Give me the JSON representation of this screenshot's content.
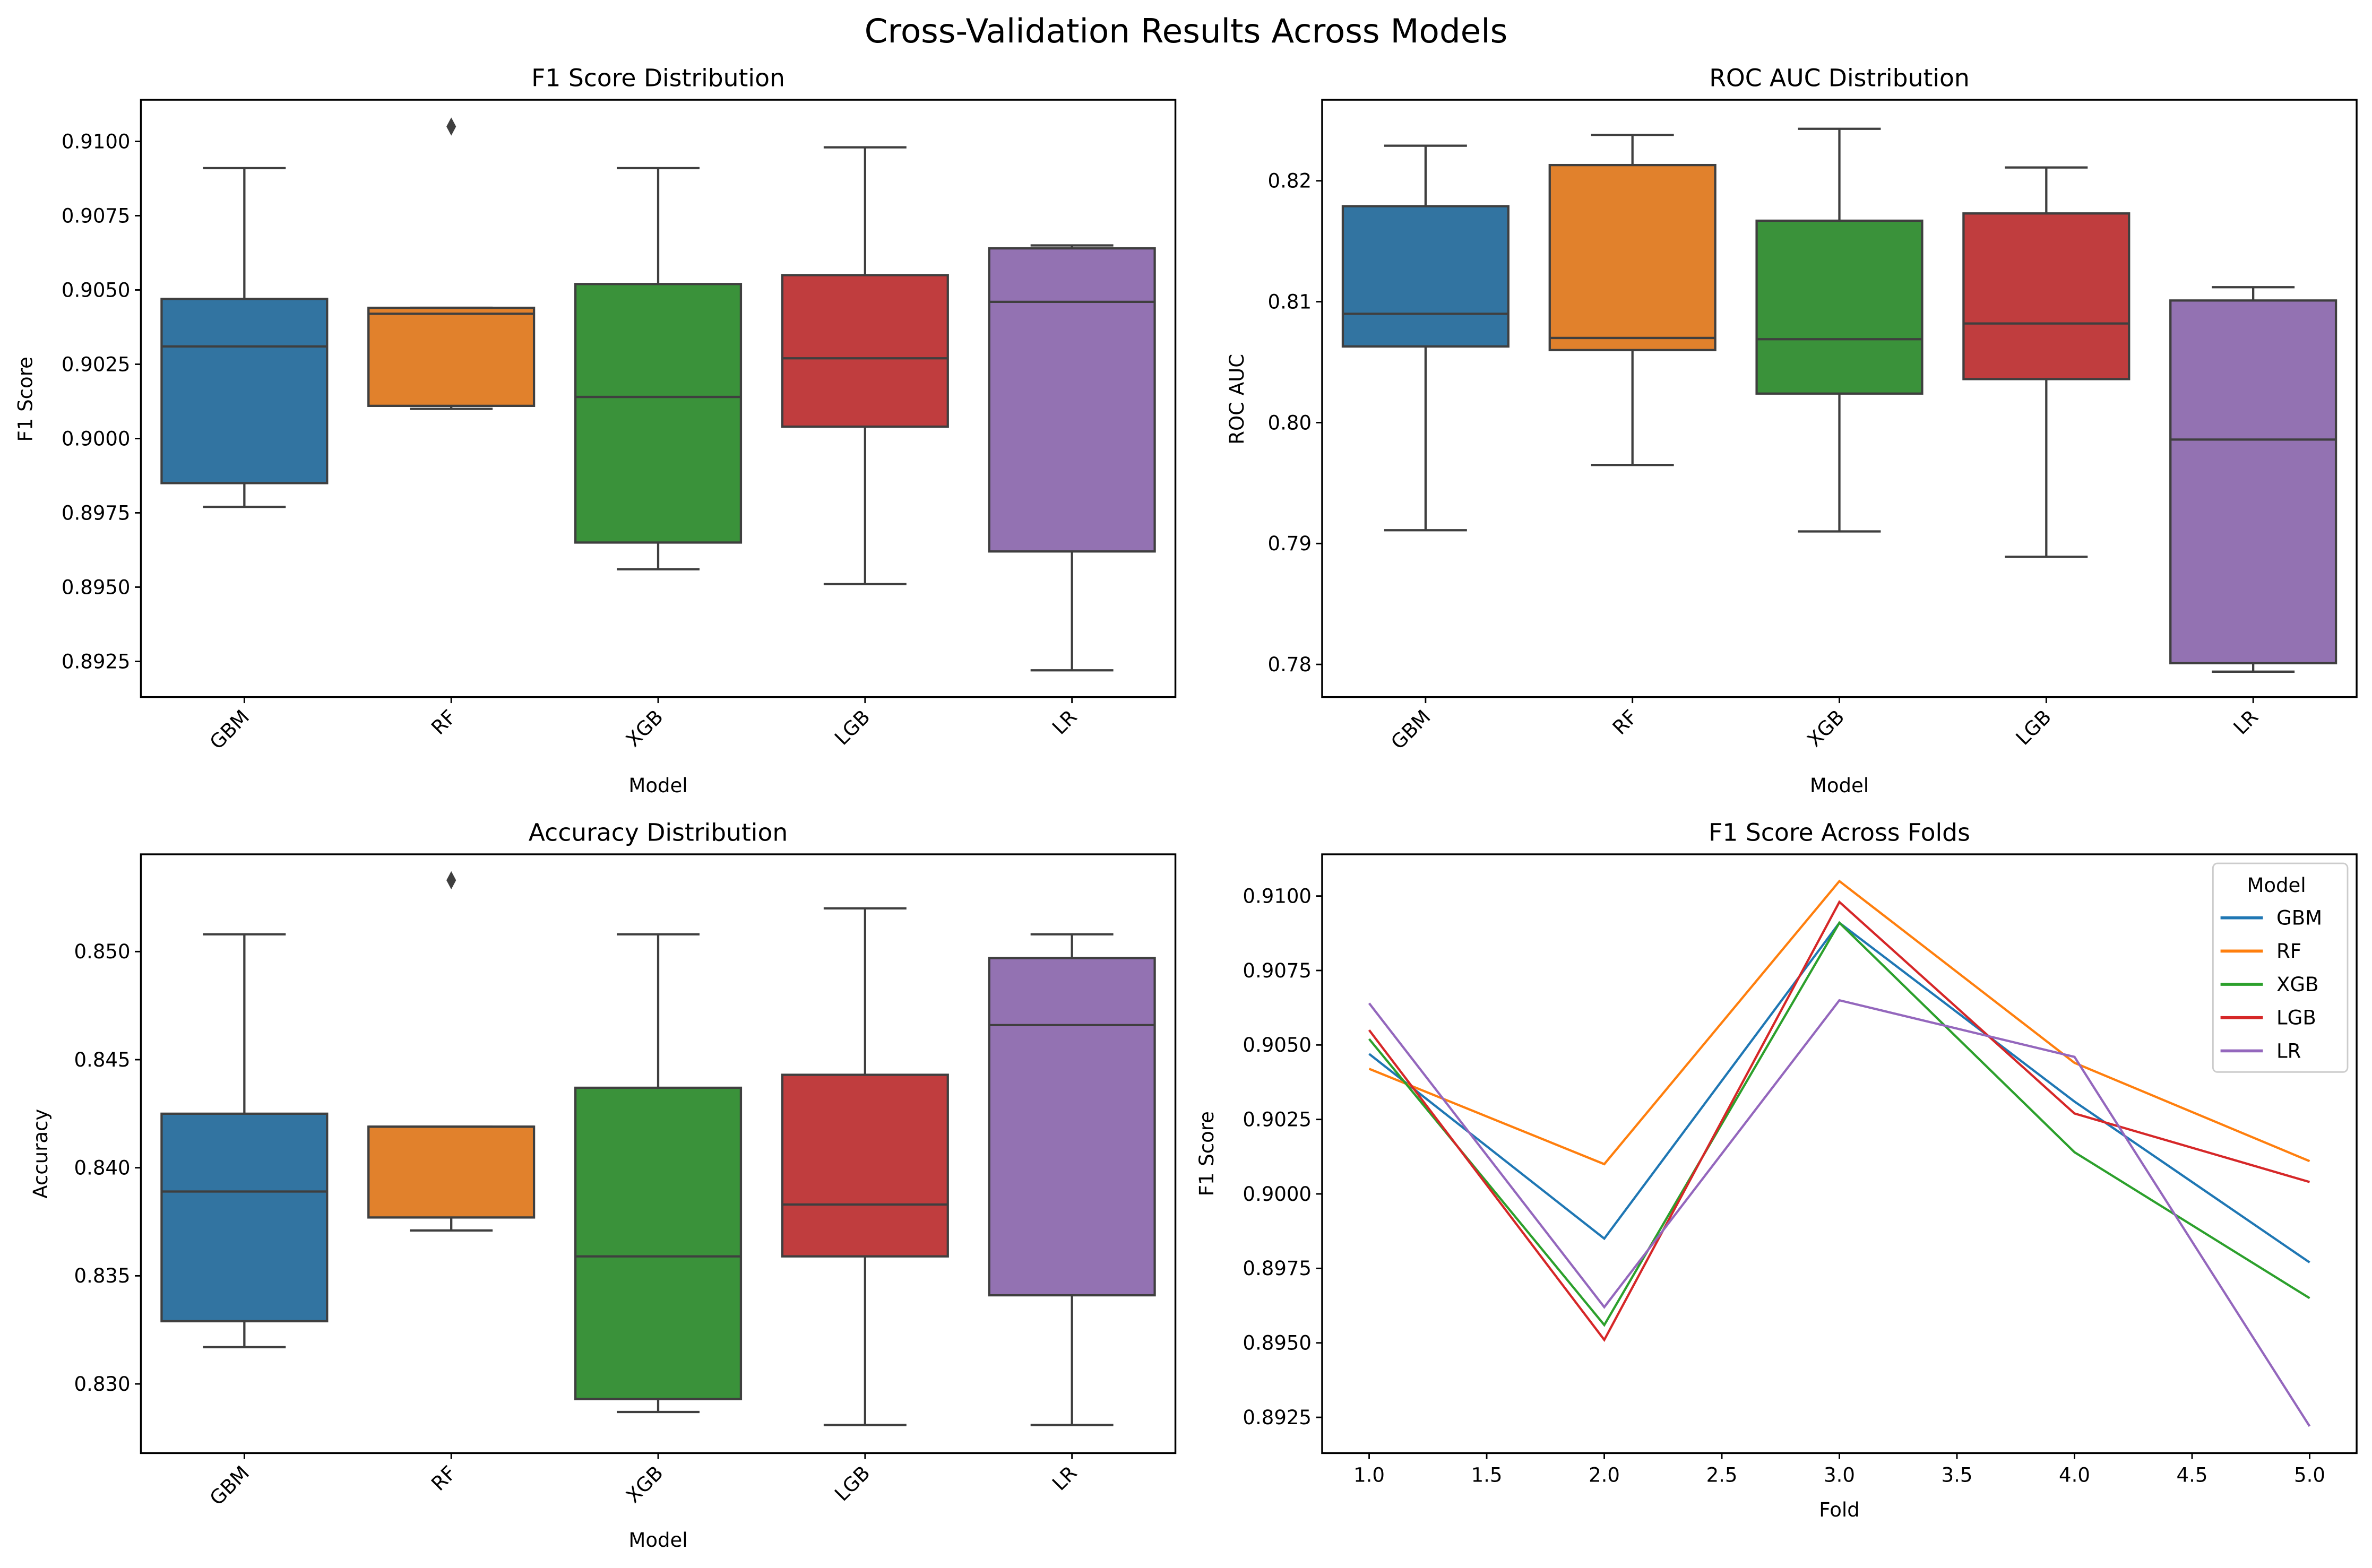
{
  "figure": {
    "title": "Cross-Validation Results Across Models"
  },
  "chart_data": [
    {
      "type": "box",
      "title": "F1 Score Distribution",
      "xlabel": "Model",
      "ylabel": "F1 Score",
      "categories": [
        "GBM",
        "RF",
        "XGB",
        "LGB",
        "LR"
      ],
      "colors": [
        "#3274a1",
        "#e1812c",
        "#3a923a",
        "#c03d3e",
        "#9372b2"
      ],
      "yticks": [
        "0.8925",
        "0.8950",
        "0.8975",
        "0.9000",
        "0.9025",
        "0.9050",
        "0.9075",
        "0.9100"
      ],
      "ytick_values": [
        0.8925,
        0.895,
        0.8975,
        0.9,
        0.9025,
        0.905,
        0.9075,
        0.91
      ],
      "ylim": [
        0.8913,
        0.9114
      ],
      "boxes": [
        {
          "whislo": 0.8977,
          "q1": 0.8985,
          "med": 0.9031,
          "q3": 0.9047,
          "whishi": 0.9091,
          "fliers": []
        },
        {
          "whislo": 0.901,
          "q1": 0.9011,
          "med": 0.9042,
          "q3": 0.9044,
          "whishi": 0.9044,
          "fliers": [
            0.9105
          ]
        },
        {
          "whislo": 0.8956,
          "q1": 0.8965,
          "med": 0.9014,
          "q3": 0.9052,
          "whishi": 0.9091,
          "fliers": []
        },
        {
          "whislo": 0.8951,
          "q1": 0.9004,
          "med": 0.9027,
          "q3": 0.9055,
          "whishi": 0.9098,
          "fliers": []
        },
        {
          "whislo": 0.8922,
          "q1": 0.8962,
          "med": 0.9046,
          "q3": 0.9064,
          "whishi": 0.9065,
          "fliers": []
        }
      ]
    },
    {
      "type": "box",
      "title": "ROC AUC Distribution",
      "xlabel": "Model",
      "ylabel": "ROC AUC",
      "categories": [
        "GBM",
        "RF",
        "XGB",
        "LGB",
        "LR"
      ],
      "colors": [
        "#3274a1",
        "#e1812c",
        "#3a923a",
        "#c03d3e",
        "#9372b2"
      ],
      "yticks": [
        "0.78",
        "0.79",
        "0.80",
        "0.81",
        "0.82"
      ],
      "ytick_values": [
        0.78,
        0.79,
        0.8,
        0.81,
        0.82
      ],
      "ylim": [
        0.7773,
        0.8267
      ],
      "boxes": [
        {
          "whislo": 0.7911,
          "q1": 0.8063,
          "med": 0.809,
          "q3": 0.8179,
          "whishi": 0.8229,
          "fliers": []
        },
        {
          "whislo": 0.7965,
          "q1": 0.806,
          "med": 0.807,
          "q3": 0.8213,
          "whishi": 0.8238,
          "fliers": []
        },
        {
          "whislo": 0.791,
          "q1": 0.8024,
          "med": 0.8069,
          "q3": 0.8167,
          "whishi": 0.8243,
          "fliers": []
        },
        {
          "whislo": 0.7889,
          "q1": 0.8036,
          "med": 0.8082,
          "q3": 0.8173,
          "whishi": 0.8211,
          "fliers": []
        },
        {
          "whislo": 0.7794,
          "q1": 0.7801,
          "med": 0.7986,
          "q3": 0.8101,
          "whishi": 0.8112,
          "fliers": []
        }
      ]
    },
    {
      "type": "box",
      "title": "Accuracy Distribution",
      "xlabel": "Model",
      "ylabel": "Accuracy",
      "categories": [
        "GBM",
        "RF",
        "XGB",
        "LGB",
        "LR"
      ],
      "colors": [
        "#3274a1",
        "#e1812c",
        "#3a923a",
        "#c03d3e",
        "#9372b2"
      ],
      "yticks": [
        "0.830",
        "0.835",
        "0.840",
        "0.845",
        "0.850"
      ],
      "ytick_values": [
        0.83,
        0.835,
        0.84,
        0.845,
        0.85
      ],
      "ylim": [
        0.8268,
        0.8545
      ],
      "boxes": [
        {
          "whislo": 0.8317,
          "q1": 0.8329,
          "med": 0.8389,
          "q3": 0.8425,
          "whishi": 0.8508,
          "fliers": []
        },
        {
          "whislo": 0.8371,
          "q1": 0.8377,
          "med": 0.8419,
          "q3": 0.8419,
          "whishi": 0.8419,
          "fliers": [
            0.8533
          ]
        },
        {
          "whislo": 0.8287,
          "q1": 0.8293,
          "med": 0.8359,
          "q3": 0.8437,
          "whishi": 0.8508,
          "fliers": []
        },
        {
          "whislo": 0.8281,
          "q1": 0.8359,
          "med": 0.8383,
          "q3": 0.8443,
          "whishi": 0.852,
          "fliers": []
        },
        {
          "whislo": 0.8281,
          "q1": 0.8341,
          "med": 0.8466,
          "q3": 0.8497,
          "whishi": 0.8508,
          "fliers": []
        }
      ]
    },
    {
      "type": "line",
      "title": "F1 Score Across Folds",
      "xlabel": "Fold",
      "ylabel": "F1 Score",
      "x": [
        1,
        2,
        3,
        4,
        5
      ],
      "xticks": [
        "1.0",
        "1.5",
        "2.0",
        "2.5",
        "3.0",
        "3.5",
        "4.0",
        "4.5",
        "5.0"
      ],
      "xtick_values": [
        1.0,
        1.5,
        2.0,
        2.5,
        3.0,
        3.5,
        4.0,
        4.5,
        5.0
      ],
      "xlim": [
        0.8,
        5.2
      ],
      "yticks": [
        "0.8925",
        "0.8950",
        "0.8975",
        "0.9000",
        "0.9025",
        "0.9050",
        "0.9075",
        "0.9100"
      ],
      "ytick_values": [
        0.8925,
        0.895,
        0.8975,
        0.9,
        0.9025,
        0.905,
        0.9075,
        0.91
      ],
      "ylim": [
        0.8913,
        0.9114
      ],
      "legend": {
        "title": "Model",
        "position": "top-right"
      },
      "series": [
        {
          "name": "GBM",
          "color": "#1f77b4",
          "values": [
            0.9047,
            0.8985,
            0.9091,
            0.9031,
            0.8977
          ]
        },
        {
          "name": "RF",
          "color": "#ff7f0e",
          "values": [
            0.9042,
            0.901,
            0.9105,
            0.9044,
            0.9011
          ]
        },
        {
          "name": "XGB",
          "color": "#2ca02c",
          "values": [
            0.9052,
            0.8956,
            0.9091,
            0.9014,
            0.8965
          ]
        },
        {
          "name": "LGB",
          "color": "#d62728",
          "values": [
            0.9055,
            0.8951,
            0.9098,
            0.9027,
            0.9004
          ]
        },
        {
          "name": "LR",
          "color": "#9467bd",
          "values": [
            0.9064,
            0.8962,
            0.9065,
            0.9046,
            0.8922
          ]
        }
      ]
    }
  ]
}
